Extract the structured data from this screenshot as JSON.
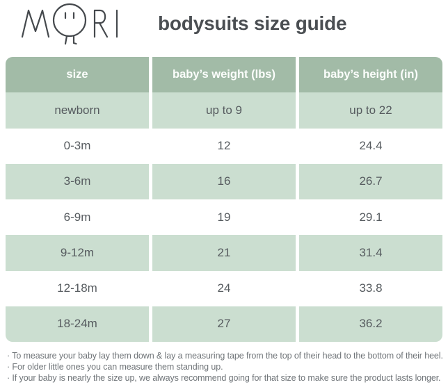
{
  "brand": {
    "name": "MORI",
    "title": "bodysuits size guide"
  },
  "table": {
    "headers": [
      "size",
      "baby’s weight (lbs)",
      "baby’s height (in)"
    ],
    "rows": [
      [
        "newborn",
        "up to 9",
        "up to 22"
      ],
      [
        "0-3m",
        "12",
        "24.4"
      ],
      [
        "3-6m",
        "16",
        "26.7"
      ],
      [
        "6-9m",
        "19",
        "29.1"
      ],
      [
        "9-12m",
        "21",
        "31.4"
      ],
      [
        "12-18m",
        "24",
        "33.8"
      ],
      [
        "18-24m",
        "27",
        "36.2"
      ]
    ]
  },
  "notes": [
    "· To measure your baby lay them down & lay a measuring tape from the top of their head to the bottom of their heel.",
    "· For older little ones you can measure them standing up.",
    "· If your baby is nearly the size up, we always recommend going for that size to make sure the product lasts longer."
  ],
  "colors": {
    "header_green": "#a2bba7",
    "row_green": "#cbded0",
    "title_text": "#4a4e52",
    "cell_text": "#565b5f",
    "note_text": "#6f7478",
    "logo_stroke": "#45494d"
  }
}
